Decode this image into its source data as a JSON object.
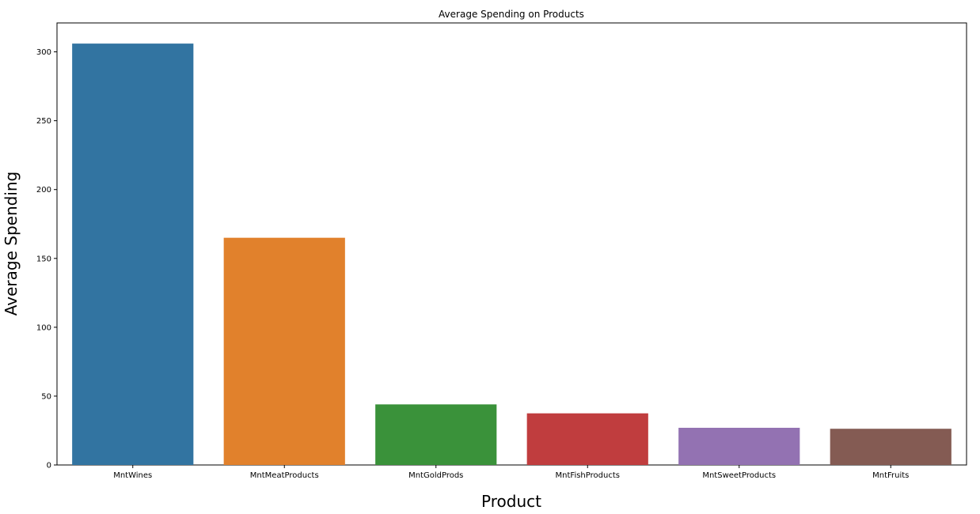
{
  "chart_data": {
    "type": "bar",
    "title": "Average Spending on Products",
    "xlabel": "Product",
    "ylabel": "Average Spending",
    "categories": [
      "MntWines",
      "MntMeatProducts",
      "MntGoldProds",
      "MntFishProducts",
      "MntSweetProducts",
      "MntFruits"
    ],
    "values": [
      306,
      165,
      44,
      37.5,
      27,
      26.3
    ],
    "colors": [
      "#3274a1",
      "#e1812c",
      "#3a923a",
      "#c03d3e",
      "#9372b2",
      "#845b53"
    ],
    "yticks": [
      0,
      50,
      100,
      150,
      200,
      250,
      300
    ],
    "ylim": [
      0,
      321
    ],
    "grid": false,
    "legend": "none"
  }
}
